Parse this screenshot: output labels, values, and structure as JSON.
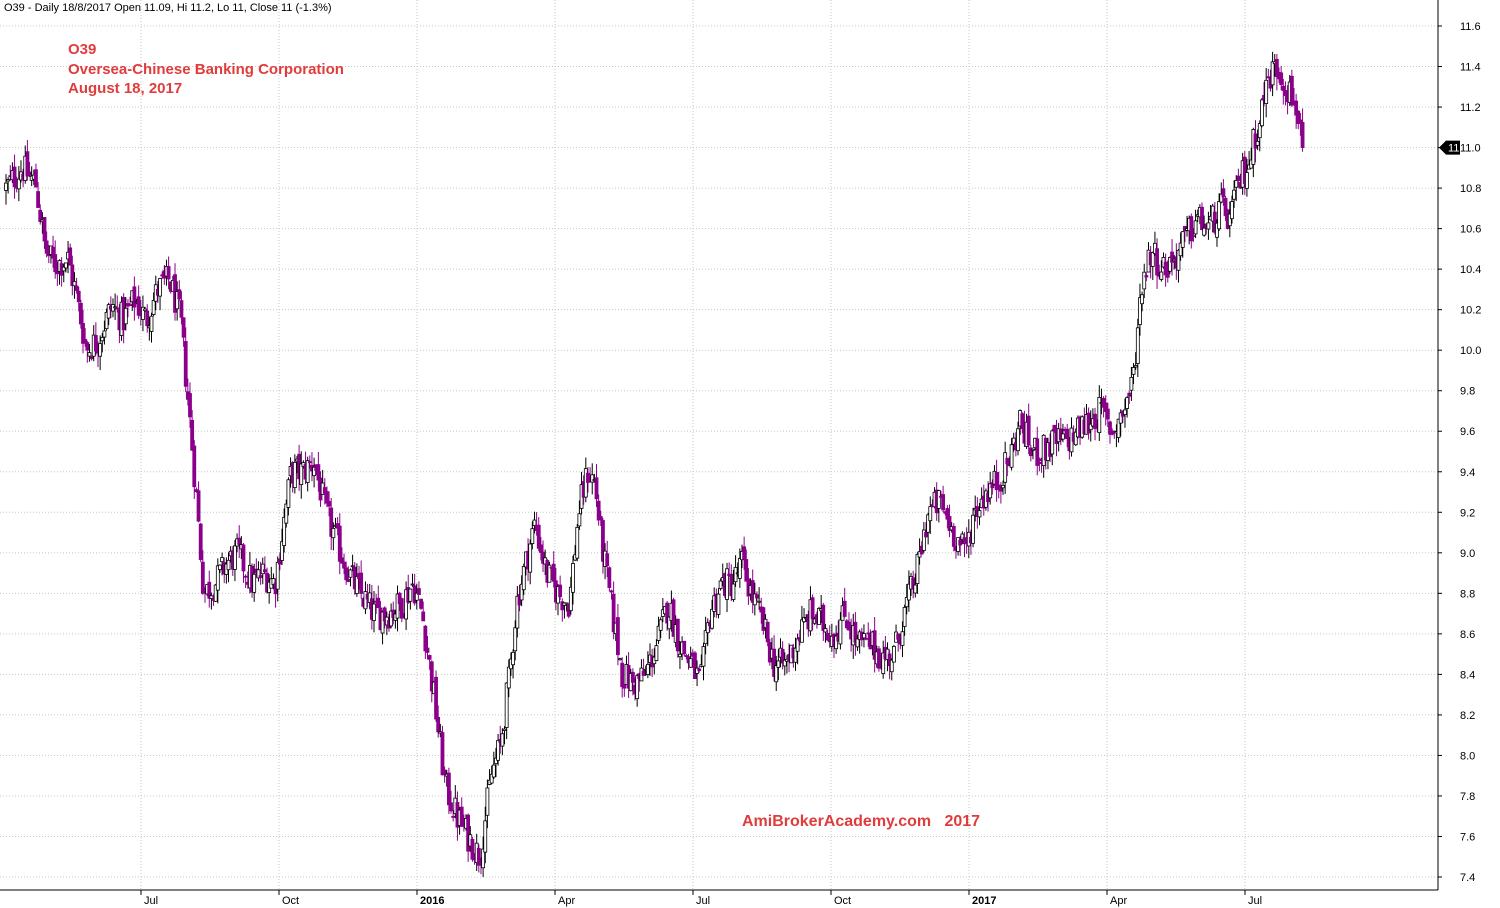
{
  "header": {
    "info_line": "O39 - Daily 18/8/2017 Open 11.09, Hi 11.2, Lo 11, Close 11 (-1.3%)"
  },
  "title_block": {
    "symbol": "O39",
    "company": "Oversea-Chinese Banking Corporation",
    "date": "August 18, 2017"
  },
  "watermark": "AmiBrokerAcademy.com   2017",
  "last_price_label": "11",
  "colors": {
    "up_candle": "#000000",
    "down_candle": "#8b008b",
    "grid": "#c8c8c8",
    "title_red": "#e03c3c",
    "price_tag_bg": "#000000",
    "price_tag_text": "#ffffff"
  },
  "chart_data": {
    "type": "candlestick",
    "y_axis": {
      "range": [
        7.35,
        11.7
      ],
      "ticks": [
        7.4,
        7.6,
        7.8,
        8.0,
        8.2,
        8.4,
        8.6,
        8.8,
        9.0,
        9.2,
        9.4,
        9.6,
        9.8,
        10.0,
        10.2,
        10.4,
        10.6,
        10.8,
        11.0,
        11.2,
        11.4,
        11.6
      ],
      "tick_labels": [
        "7.4",
        "7.6",
        "7.8",
        "8.0",
        "8.2",
        "8.4",
        "8.6",
        "8.8",
        "9.0",
        "9.2",
        "9.4",
        "9.6",
        "9.8",
        "10.0",
        "10.2",
        "10.4",
        "10.6",
        "10.8",
        "11.0",
        "11.2",
        "11.4",
        "11.6"
      ],
      "side": "right"
    },
    "x_axis": {
      "ticks": [
        {
          "label": "Jul",
          "bold": false,
          "month_index": 3
        },
        {
          "label": "Oct",
          "bold": false,
          "month_index": 6
        },
        {
          "label": "2016",
          "bold": true,
          "month_index": 9
        },
        {
          "label": "Apr",
          "bold": false,
          "month_index": 12
        },
        {
          "label": "Jul",
          "bold": false,
          "month_index": 15
        },
        {
          "label": "Oct",
          "bold": false,
          "month_index": 18
        },
        {
          "label": "2017",
          "bold": true,
          "month_index": 21
        },
        {
          "label": "Apr",
          "bold": false,
          "month_index": 24
        },
        {
          "label": "Jul",
          "bold": false,
          "month_index": 27
        }
      ],
      "span_months": [
        0.0,
        29.6
      ]
    },
    "grid": true,
    "last_close": 11.0,
    "anchors": [
      [
        0.0,
        10.8
      ],
      [
        0.35,
        10.9
      ],
      [
        0.65,
        10.82
      ],
      [
        0.85,
        10.5
      ],
      [
        1.05,
        10.42
      ],
      [
        1.35,
        10.45
      ],
      [
        1.55,
        10.25
      ],
      [
        1.75,
        10.0
      ],
      [
        2.0,
        10.05
      ],
      [
        2.3,
        10.22
      ],
      [
        2.55,
        10.15
      ],
      [
        2.8,
        10.25
      ],
      [
        3.05,
        10.15
      ],
      [
        3.3,
        10.3
      ],
      [
        3.55,
        10.35
      ],
      [
        3.8,
        10.15
      ],
      [
        4.0,
        9.65
      ],
      [
        4.15,
        9.25
      ],
      [
        4.3,
        8.8
      ],
      [
        4.55,
        8.85
      ],
      [
        4.8,
        8.95
      ],
      [
        5.05,
        9.0
      ],
      [
        5.35,
        8.85
      ],
      [
        5.6,
        8.9
      ],
      [
        5.85,
        8.85
      ],
      [
        6.2,
        9.4
      ],
      [
        6.45,
        9.4
      ],
      [
        6.7,
        9.45
      ],
      [
        6.95,
        9.2
      ],
      [
        7.2,
        9.05
      ],
      [
        7.45,
        8.9
      ],
      [
        7.7,
        8.8
      ],
      [
        8.0,
        8.7
      ],
      [
        8.3,
        8.7
      ],
      [
        8.6,
        8.75
      ],
      [
        8.85,
        8.85
      ],
      [
        9.05,
        8.7
      ],
      [
        9.3,
        8.3
      ],
      [
        9.55,
        7.85
      ],
      [
        9.8,
        7.7
      ],
      [
        10.05,
        7.6
      ],
      [
        10.3,
        7.5
      ],
      [
        10.55,
        7.9
      ],
      [
        10.75,
        8.05
      ],
      [
        10.95,
        8.4
      ],
      [
        11.1,
        8.75
      ],
      [
        11.3,
        8.95
      ],
      [
        11.5,
        9.15
      ],
      [
        11.75,
        8.9
      ],
      [
        12.0,
        8.8
      ],
      [
        12.25,
        8.75
      ],
      [
        12.45,
        9.2
      ],
      [
        12.65,
        9.4
      ],
      [
        12.8,
        9.35
      ],
      [
        12.95,
        9.05
      ],
      [
        13.15,
        8.75
      ],
      [
        13.4,
        8.4
      ],
      [
        13.65,
        8.35
      ],
      [
        13.9,
        8.4
      ],
      [
        14.15,
        8.55
      ],
      [
        14.4,
        8.75
      ],
      [
        14.65,
        8.55
      ],
      [
        14.9,
        8.45
      ],
      [
        15.1,
        8.35
      ],
      [
        15.3,
        8.7
      ],
      [
        15.55,
        8.85
      ],
      [
        15.8,
        8.85
      ],
      [
        16.0,
        8.95
      ],
      [
        16.2,
        8.8
      ],
      [
        16.45,
        8.65
      ],
      [
        16.7,
        8.45
      ],
      [
        16.95,
        8.45
      ],
      [
        17.25,
        8.6
      ],
      [
        17.5,
        8.7
      ],
      [
        17.75,
        8.65
      ],
      [
        18.0,
        8.6
      ],
      [
        18.25,
        8.7
      ],
      [
        18.5,
        8.55
      ],
      [
        18.8,
        8.55
      ],
      [
        19.05,
        8.48
      ],
      [
        19.3,
        8.5
      ],
      [
        19.55,
        8.72
      ],
      [
        19.8,
        8.9
      ],
      [
        20.05,
        9.2
      ],
      [
        20.3,
        9.25
      ],
      [
        20.6,
        9.1
      ],
      [
        20.85,
        9.0
      ],
      [
        21.05,
        9.2
      ],
      [
        21.3,
        9.3
      ],
      [
        21.55,
        9.35
      ],
      [
        21.8,
        9.45
      ],
      [
        22.05,
        9.65
      ],
      [
        22.3,
        9.5
      ],
      [
        22.55,
        9.5
      ],
      [
        22.8,
        9.55
      ],
      [
        23.05,
        9.55
      ],
      [
        23.3,
        9.6
      ],
      [
        23.55,
        9.65
      ],
      [
        23.8,
        9.7
      ],
      [
        24.05,
        9.6
      ],
      [
        24.3,
        9.7
      ],
      [
        24.5,
        9.85
      ],
      [
        24.7,
        10.35
      ],
      [
        24.9,
        10.5
      ],
      [
        25.15,
        10.4
      ],
      [
        25.4,
        10.45
      ],
      [
        25.65,
        10.55
      ],
      [
        25.9,
        10.65
      ],
      [
        26.15,
        10.6
      ],
      [
        26.4,
        10.7
      ],
      [
        26.6,
        10.65
      ],
      [
        26.85,
        10.85
      ],
      [
        27.05,
        10.95
      ],
      [
        27.25,
        11.15
      ],
      [
        27.45,
        11.35
      ],
      [
        27.65,
        11.4
      ],
      [
        27.85,
        11.3
      ],
      [
        28.05,
        11.2
      ],
      [
        28.2,
        11.05
      ]
    ]
  }
}
